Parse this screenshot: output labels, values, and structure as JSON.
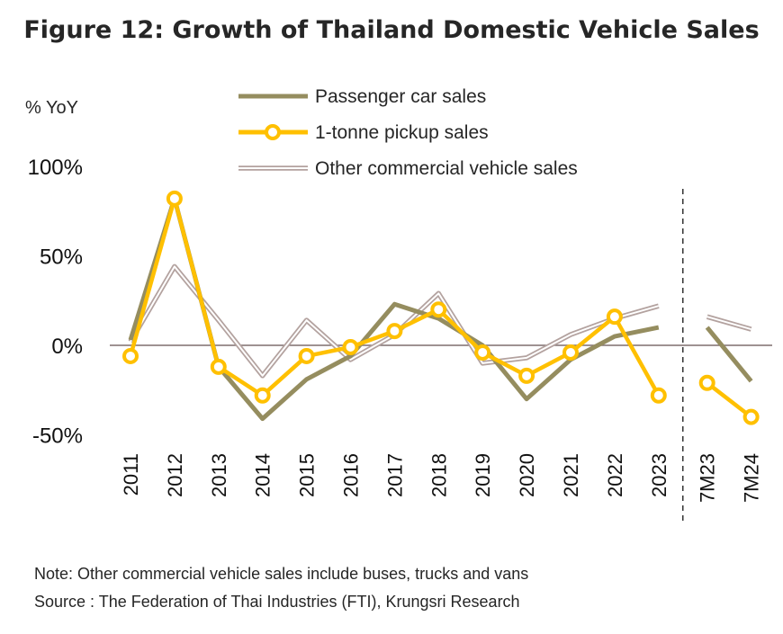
{
  "title": "Figure 12: Growth of Thailand Domestic Vehicle Sales",
  "note": "Note: Other commercial vehicle sales include buses, trucks and vans",
  "source": "Source : The Federation of Thai Industries (FTI), Krungsri Research",
  "colors": {
    "passenger": "#958d5f",
    "pickup": "#ffc000",
    "other": "#b3a29f",
    "zero": "#7f6f6f"
  },
  "chart_data": {
    "type": "line",
    "ylabel": "% YoY",
    "ylim": [
      -50,
      100
    ],
    "yticks": [
      100,
      50,
      0,
      -50
    ],
    "ytick_labels": [
      "100%",
      "50%",
      "0%",
      "-50%"
    ],
    "categories": [
      "2011",
      "2012",
      "2013",
      "2014",
      "2015",
      "2016",
      "2017",
      "2018",
      "2019",
      "2020",
      "2021",
      "2022",
      "2023",
      "7M23",
      "7M24"
    ],
    "legend_position": "top",
    "separator_after": "2023",
    "series": [
      {
        "name": "Passenger car sales",
        "key": "passenger",
        "values": [
          3,
          82,
          -12,
          -41,
          -19,
          -6,
          23,
          15,
          0,
          -30,
          -8,
          5,
          10,
          10,
          -20
        ]
      },
      {
        "name": "1-tonne pickup sales",
        "key": "pickup",
        "values": [
          -6,
          82,
          -12,
          -28,
          -6,
          -1,
          8,
          20,
          -4,
          -17,
          -4,
          16,
          -28,
          -21,
          -40
        ]
      },
      {
        "name": "Other commercial vehicle sales",
        "key": "other",
        "values": [
          2,
          44,
          14,
          -17,
          14,
          -8,
          6,
          29,
          -10,
          -7,
          6,
          15,
          22,
          16,
          9
        ]
      }
    ]
  }
}
